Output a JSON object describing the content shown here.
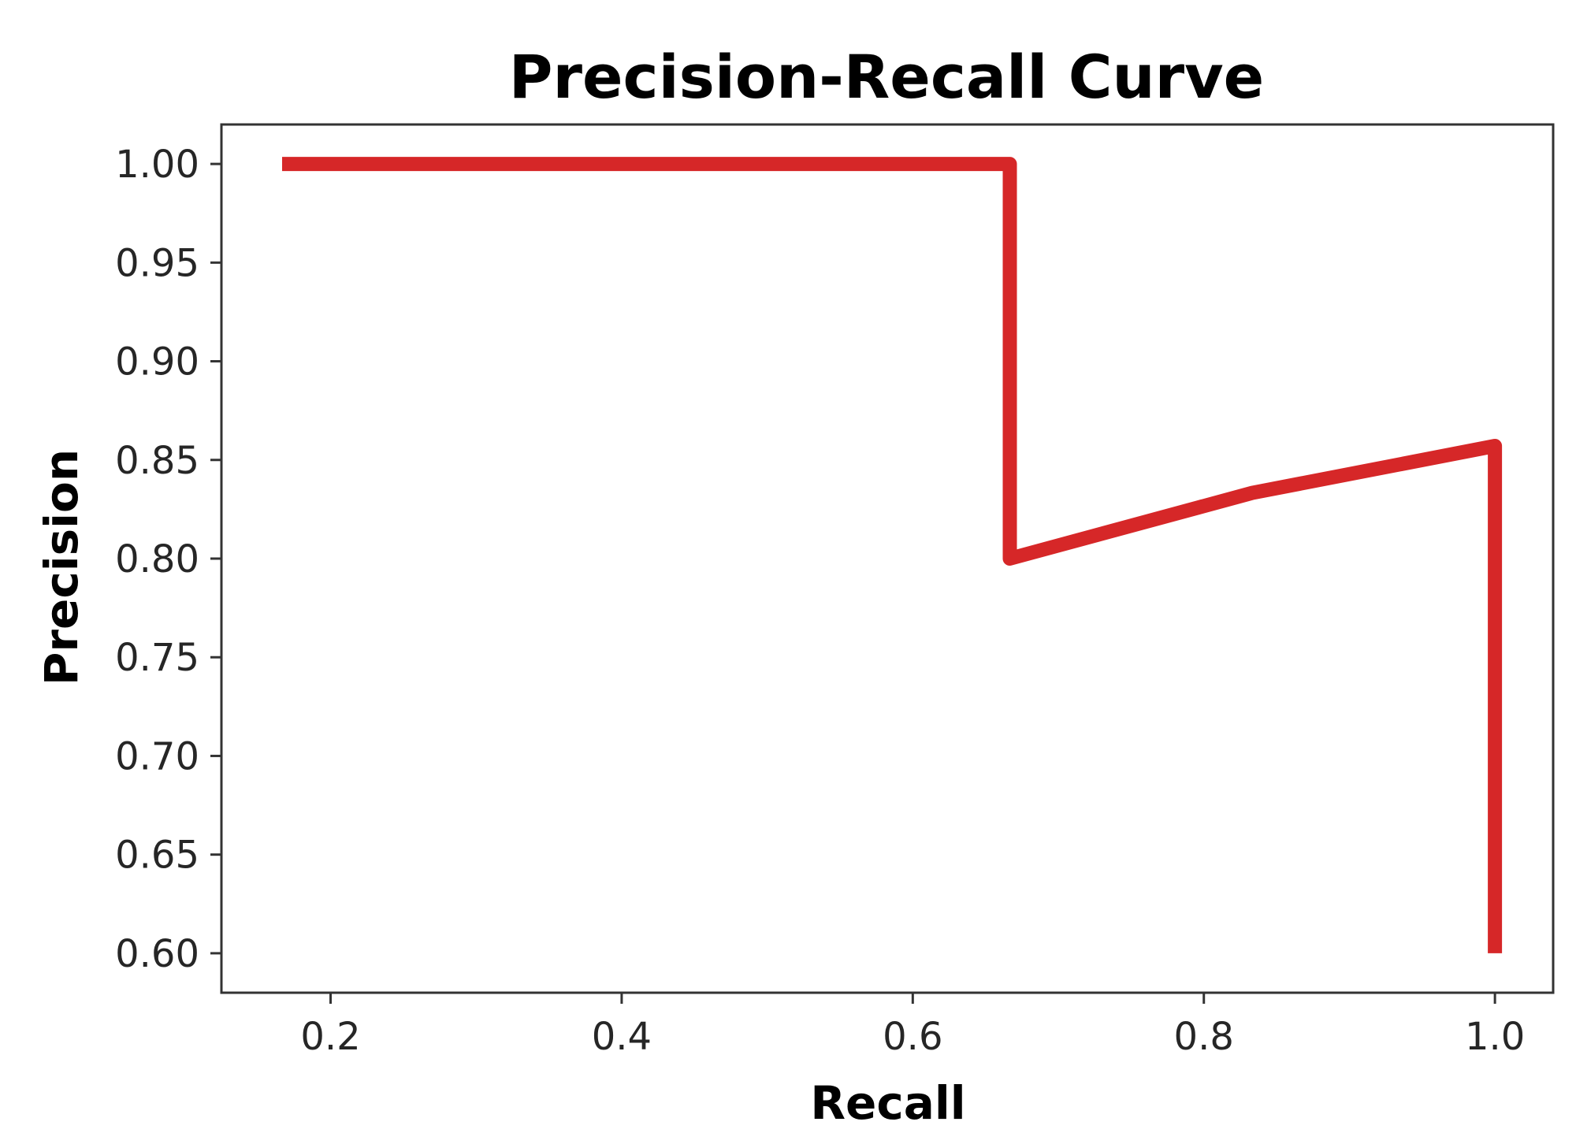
{
  "chart_data": {
    "type": "line",
    "title": "Precision-Recall Curve",
    "xlabel": "Recall",
    "ylabel": "Precision",
    "xlim": [
      0.125,
      1.04
    ],
    "ylim": [
      0.58,
      1.02
    ],
    "xticks": [
      0.2,
      0.4,
      0.6,
      0.8,
      1.0
    ],
    "xtick_labels": [
      "0.2",
      "0.4",
      "0.6",
      "0.8",
      "1.0"
    ],
    "yticks": [
      0.6,
      0.65,
      0.7,
      0.75,
      0.8,
      0.85,
      0.9,
      0.95,
      1.0
    ],
    "ytick_labels": [
      "0.60",
      "0.65",
      "0.70",
      "0.75",
      "0.80",
      "0.85",
      "0.90",
      "0.95",
      "1.00"
    ],
    "grid": false,
    "legend": false,
    "series": [
      {
        "color": "#d62728",
        "x": [
          0.1667,
          0.3333,
          0.5,
          0.6667,
          0.6667,
          0.8333,
          1.0,
          1.0
        ],
        "y": [
          1.0,
          1.0,
          1.0,
          1.0,
          0.8,
          0.8333,
          0.8571,
          0.6
        ]
      }
    ]
  }
}
